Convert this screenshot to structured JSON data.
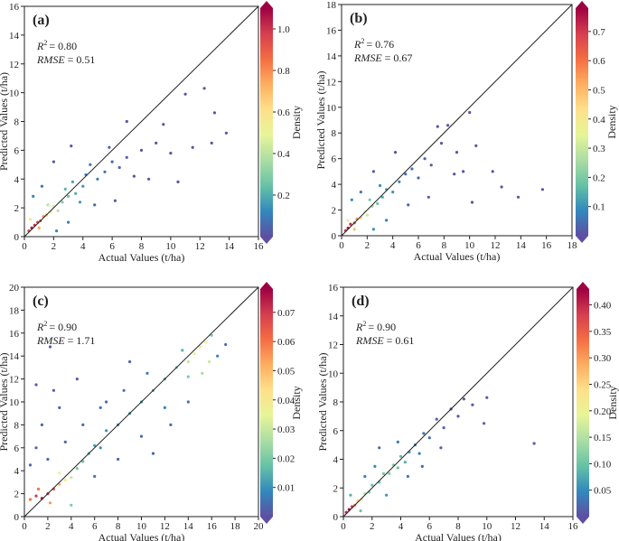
{
  "figure": {
    "colorbar_colors": [
      "#5e4fa2",
      "#3288bd",
      "#66c2a5",
      "#abdda4",
      "#e6f598",
      "#fee08b",
      "#fdae61",
      "#f46d43",
      "#d53e4f",
      "#9e0142"
    ]
  },
  "chart_data": [
    {
      "type": "scatter",
      "panel_label": "(a)",
      "xlabel": "Actual Values (t/ha)",
      "ylabel": "Predicted Values (t/ha)",
      "colorbar_label": "Density",
      "xlim": [
        0,
        16
      ],
      "ylim": [
        0,
        16
      ],
      "xticks": [
        0,
        2,
        4,
        6,
        8,
        10,
        12,
        14,
        16
      ],
      "yticks": [
        0,
        2,
        4,
        6,
        8,
        10,
        12,
        14,
        16
      ],
      "cbar_ticks": [
        "0.2",
        "0.4",
        "0.6",
        "0.8",
        "1.0"
      ],
      "cbar_range": [
        0.0,
        1.1
      ],
      "r2_label": "R",
      "r2_value": "= 0.80",
      "rmse_label": "RMSE",
      "rmse_value": "= 0.51",
      "reference_line": "1:1",
      "points": [
        [
          0.3,
          0.4,
          0.95
        ],
        [
          0.5,
          0.6,
          1.05
        ],
        [
          0.7,
          0.8,
          1.0
        ],
        [
          0.9,
          1.0,
          0.95
        ],
        [
          1.1,
          1.1,
          0.9
        ],
        [
          1.3,
          1.4,
          0.8
        ],
        [
          1.5,
          1.5,
          0.7
        ],
        [
          0.4,
          1.2,
          0.6
        ],
        [
          1.0,
          0.6,
          0.75
        ],
        [
          1.8,
          1.7,
          0.55
        ],
        [
          2.0,
          2.1,
          0.45
        ],
        [
          1.6,
          2.2,
          0.4
        ],
        [
          2.3,
          1.8,
          0.4
        ],
        [
          2.6,
          2.4,
          0.3
        ],
        [
          3.0,
          2.8,
          0.25
        ],
        [
          2.8,
          3.3,
          0.22
        ],
        [
          3.5,
          3.0,
          0.2
        ],
        [
          3.3,
          3.8,
          0.18
        ],
        [
          4.0,
          3.5,
          0.15
        ],
        [
          4.2,
          4.3,
          0.12
        ],
        [
          3.8,
          2.4,
          0.15
        ],
        [
          5.0,
          4.0,
          0.1
        ],
        [
          4.5,
          5.0,
          0.08
        ],
        [
          5.5,
          4.5,
          0.07
        ],
        [
          6.0,
          5.2,
          0.05
        ],
        [
          6.5,
          4.8,
          0.04
        ],
        [
          7.0,
          5.5,
          0.03
        ],
        [
          5.8,
          6.2,
          0.04
        ],
        [
          8.0,
          6.0,
          0.02
        ],
        [
          7.5,
          4.2,
          0.02
        ],
        [
          9.0,
          6.5,
          0.01
        ],
        [
          10.0,
          5.8,
          0.01
        ],
        [
          11.0,
          9.9,
          0.01
        ],
        [
          12.3,
          10.3,
          0.01
        ],
        [
          13.0,
          8.6,
          0.01
        ],
        [
          12.8,
          6.5,
          0.01
        ],
        [
          10.5,
          3.8,
          0.01
        ],
        [
          11.5,
          6.2,
          0.01
        ],
        [
          2.2,
          0.4,
          0.12
        ],
        [
          3.0,
          1.0,
          0.1
        ],
        [
          0.6,
          2.8,
          0.12
        ],
        [
          1.2,
          3.5,
          0.08
        ],
        [
          4.8,
          2.2,
          0.05
        ],
        [
          6.2,
          2.5,
          0.03
        ],
        [
          2.0,
          5.2,
          0.03
        ],
        [
          3.2,
          6.3,
          0.02
        ],
        [
          8.5,
          4.0,
          0.01
        ],
        [
          9.5,
          7.8,
          0.01
        ],
        [
          7.0,
          8.0,
          0.01
        ],
        [
          13.8,
          7.2,
          0.01
        ]
      ]
    },
    {
      "type": "scatter",
      "panel_label": "(b)",
      "xlabel": "Actual Values (t/ha)",
      "ylabel": "Predicted Values (t/ha)",
      "colorbar_label": "Density",
      "xlim": [
        0,
        18
      ],
      "ylim": [
        0,
        18
      ],
      "xticks": [
        0,
        2,
        4,
        6,
        8,
        10,
        12,
        14,
        16,
        18
      ],
      "yticks": [
        0,
        2,
        4,
        6,
        8,
        10,
        12,
        14,
        16,
        18
      ],
      "cbar_ticks": [
        "0.1",
        "0.2",
        "0.3",
        "0.4",
        "0.5",
        "0.6",
        "0.7"
      ],
      "cbar_range": [
        0.0,
        0.78
      ],
      "r2_label": "R",
      "r2_value": "= 0.76",
      "rmse_label": "RMSE",
      "rmse_value": "= 0.67",
      "reference_line": "1:1",
      "points": [
        [
          0.3,
          0.4,
          0.7
        ],
        [
          0.5,
          0.6,
          0.75
        ],
        [
          0.7,
          0.9,
          0.72
        ],
        [
          1.0,
          1.0,
          0.65
        ],
        [
          1.2,
          1.3,
          0.55
        ],
        [
          1.5,
          1.4,
          0.45
        ],
        [
          0.5,
          1.2,
          0.4
        ],
        [
          1.0,
          0.5,
          0.5
        ],
        [
          1.8,
          1.9,
          0.35
        ],
        [
          2.0,
          1.6,
          0.3
        ],
        [
          2.4,
          2.3,
          0.25
        ],
        [
          2.2,
          2.8,
          0.2
        ],
        [
          2.8,
          2.5,
          0.18
        ],
        [
          3.2,
          3.0,
          0.14
        ],
        [
          3.5,
          3.6,
          0.12
        ],
        [
          3.0,
          3.9,
          0.1
        ],
        [
          4.0,
          3.4,
          0.1
        ],
        [
          4.5,
          4.2,
          0.08
        ],
        [
          5.0,
          4.8,
          0.06
        ],
        [
          5.5,
          5.2,
          0.05
        ],
        [
          6.0,
          4.5,
          0.04
        ],
        [
          6.5,
          6.0,
          0.03
        ],
        [
          7.0,
          5.5,
          0.02
        ],
        [
          7.8,
          7.2,
          0.02
        ],
        [
          8.3,
          8.6,
          0.01
        ],
        [
          9.0,
          6.5,
          0.01
        ],
        [
          10.0,
          9.6,
          0.01
        ],
        [
          10.5,
          7.0,
          0.01
        ],
        [
          11.8,
          5.0,
          0.01
        ],
        [
          12.5,
          3.8,
          0.01
        ],
        [
          13.8,
          3.0,
          0.01
        ],
        [
          15.7,
          3.6,
          0.01
        ],
        [
          10.2,
          2.6,
          0.01
        ],
        [
          8.8,
          4.8,
          0.01
        ],
        [
          2.5,
          0.5,
          0.1
        ],
        [
          3.5,
          1.2,
          0.08
        ],
        [
          0.8,
          2.8,
          0.1
        ],
        [
          1.5,
          3.4,
          0.06
        ],
        [
          5.2,
          2.4,
          0.04
        ],
        [
          6.8,
          3.0,
          0.02
        ],
        [
          2.5,
          5.0,
          0.02
        ],
        [
          4.2,
          6.5,
          0.01
        ],
        [
          7.5,
          8.5,
          0.01
        ],
        [
          9.5,
          5.0,
          0.01
        ]
      ]
    },
    {
      "type": "scatter",
      "panel_label": "(c)",
      "xlabel": "Actual Values (t/ha)",
      "ylabel": "Predicted Values (t/ha)",
      "colorbar_label": "Density",
      "xlim": [
        0,
        20
      ],
      "ylim": [
        0,
        20
      ],
      "xticks": [
        0,
        2,
        4,
        6,
        8,
        10,
        12,
        14,
        16,
        18,
        20
      ],
      "yticks": [
        0,
        2,
        4,
        6,
        8,
        10,
        12,
        14,
        16,
        18,
        20
      ],
      "cbar_ticks": [
        "0.01",
        "0.02",
        "0.03",
        "0.04",
        "0.05",
        "0.06",
        "0.07"
      ],
      "cbar_range": [
        0.0,
        0.078
      ],
      "r2_label": "R",
      "r2_value": "= 0.90",
      "rmse_label": "RMSE",
      "rmse_value": "= 1.71",
      "reference_line": "1:1",
      "points": [
        [
          0.5,
          1.5,
          0.06
        ],
        [
          1.0,
          1.8,
          0.07
        ],
        [
          1.5,
          1.6,
          0.075
        ],
        [
          2.0,
          2.0,
          0.07
        ],
        [
          2.5,
          2.4,
          0.065
        ],
        [
          1.2,
          2.4,
          0.06
        ],
        [
          2.2,
          1.2,
          0.055
        ],
        [
          3.0,
          2.8,
          0.05
        ],
        [
          3.5,
          3.2,
          0.04
        ],
        [
          3.0,
          3.8,
          0.035
        ],
        [
          4.0,
          3.4,
          0.03
        ],
        [
          4.5,
          4.2,
          0.02
        ],
        [
          5.0,
          4.8,
          0.018
        ],
        [
          5.5,
          5.5,
          0.015
        ],
        [
          6.0,
          6.2,
          0.012
        ],
        [
          6.5,
          6.0,
          0.01
        ],
        [
          7.0,
          7.5,
          0.01
        ],
        [
          8.0,
          8.0,
          0.01
        ],
        [
          9.0,
          9.0,
          0.012
        ],
        [
          10.0,
          10.0,
          0.012
        ],
        [
          11.0,
          11.0,
          0.014
        ],
        [
          12.0,
          12.0,
          0.016
        ],
        [
          13.0,
          13.0,
          0.02
        ],
        [
          14.0,
          13.5,
          0.03
        ],
        [
          14.5,
          14.2,
          0.035
        ],
        [
          15.0,
          14.8,
          0.04
        ],
        [
          15.5,
          15.2,
          0.035
        ],
        [
          15.8,
          13.5,
          0.03
        ],
        [
          15.2,
          12.5,
          0.025
        ],
        [
          14.0,
          12.2,
          0.02
        ],
        [
          13.5,
          14.5,
          0.015
        ],
        [
          16.0,
          15.8,
          0.02
        ],
        [
          17.2,
          15.0,
          0.005
        ],
        [
          16.5,
          14.0,
          0.008
        ],
        [
          12.0,
          9.5,
          0.008
        ],
        [
          10.5,
          12.5,
          0.006
        ],
        [
          8.5,
          11.0,
          0.005
        ],
        [
          7.0,
          10.0,
          0.004
        ],
        [
          5.0,
          8.0,
          0.004
        ],
        [
          3.5,
          6.5,
          0.004
        ],
        [
          2.0,
          5.0,
          0.004
        ],
        [
          1.5,
          8.0,
          0.003
        ],
        [
          2.5,
          11.0,
          0.002
        ],
        [
          2.2,
          14.8,
          0.002
        ],
        [
          1.0,
          11.5,
          0.002
        ],
        [
          4.5,
          12.0,
          0.002
        ],
        [
          6.0,
          3.5,
          0.006
        ],
        [
          8.0,
          5.0,
          0.004
        ],
        [
          10.0,
          7.0,
          0.004
        ],
        [
          12.5,
          8.0,
          0.004
        ],
        [
          14.0,
          10.0,
          0.005
        ],
        [
          11.0,
          5.5,
          0.003
        ],
        [
          9.0,
          13.5,
          0.003
        ],
        [
          3.0,
          9.5,
          0.003
        ],
        [
          0.5,
          4.5,
          0.004
        ],
        [
          1.0,
          6.0,
          0.003
        ],
        [
          4.0,
          1.0,
          0.02
        ],
        [
          6.5,
          9.5,
          0.005
        ]
      ]
    },
    {
      "type": "scatter",
      "panel_label": "(d)",
      "xlabel": "Actual Values (t/ha)",
      "ylabel": "Predicted Values (t/ha)",
      "colorbar_label": "Density",
      "xlim": [
        0,
        16
      ],
      "ylim": [
        0,
        16
      ],
      "xticks": [
        0,
        2,
        4,
        6,
        8,
        10,
        12,
        14,
        16
      ],
      "yticks": [
        0,
        2,
        4,
        6,
        8,
        10,
        12,
        14,
        16
      ],
      "cbar_ticks": [
        "0.05",
        "0.10",
        "0.15",
        "0.20",
        "0.25",
        "0.30",
        "0.35",
        "0.40"
      ],
      "cbar_range": [
        0.0,
        0.43
      ],
      "r2_label": "R",
      "r2_value": "= 0.90",
      "rmse_label": "RMSE",
      "rmse_value": "= 0.61",
      "reference_line": "1:1",
      "points": [
        [
          0.2,
          0.3,
          0.4
        ],
        [
          0.4,
          0.5,
          0.42
        ],
        [
          0.6,
          0.7,
          0.38
        ],
        [
          0.8,
          0.8,
          0.32
        ],
        [
          1.0,
          1.1,
          0.25
        ],
        [
          1.3,
          1.2,
          0.2
        ],
        [
          1.5,
          1.6,
          0.15
        ],
        [
          1.8,
          1.7,
          0.12
        ],
        [
          2.0,
          2.2,
          0.1
        ],
        [
          2.5,
          2.4,
          0.1
        ],
        [
          2.8,
          3.0,
          0.11
        ],
        [
          3.2,
          3.0,
          0.12
        ],
        [
          3.5,
          3.6,
          0.11
        ],
        [
          3.8,
          3.4,
          0.1
        ],
        [
          4.0,
          4.2,
          0.09
        ],
        [
          4.3,
          3.8,
          0.08
        ],
        [
          4.6,
          4.5,
          0.07
        ],
        [
          5.0,
          5.0,
          0.05
        ],
        [
          5.3,
          4.4,
          0.04
        ],
        [
          5.6,
          5.8,
          0.03
        ],
        [
          6.0,
          5.5,
          0.03
        ],
        [
          6.5,
          6.8,
          0.02
        ],
        [
          7.0,
          6.2,
          0.02
        ],
        [
          7.5,
          7.5,
          0.01
        ],
        [
          8.0,
          7.0,
          0.01
        ],
        [
          8.4,
          8.2,
          0.01
        ],
        [
          9.0,
          7.8,
          0.01
        ],
        [
          9.8,
          6.5,
          0.01
        ],
        [
          10.0,
          8.3,
          0.01
        ],
        [
          13.3,
          5.1,
          0.01
        ],
        [
          3.0,
          1.5,
          0.06
        ],
        [
          2.2,
          3.5,
          0.05
        ],
        [
          4.5,
          2.8,
          0.04
        ],
        [
          1.5,
          2.8,
          0.04
        ],
        [
          5.5,
          3.5,
          0.02
        ],
        [
          3.8,
          5.2,
          0.03
        ],
        [
          6.8,
          4.8,
          0.01
        ],
        [
          2.5,
          4.8,
          0.02
        ],
        [
          0.5,
          1.5,
          0.08
        ],
        [
          1.2,
          0.4,
          0.1
        ]
      ]
    }
  ]
}
